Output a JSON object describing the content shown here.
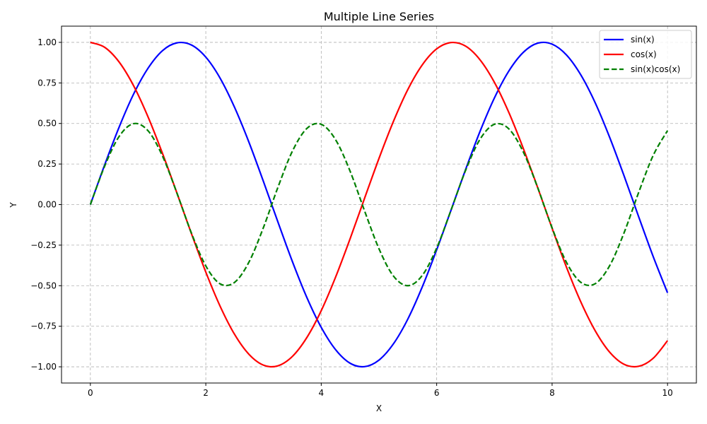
{
  "chart_data": {
    "type": "line",
    "title": "Multiple Line Series",
    "xlabel": "X",
    "ylabel": "Y",
    "xlim": [
      -0.5,
      10.5
    ],
    "ylim": [
      -1.1,
      1.1
    ],
    "x_ticks": [
      0,
      2,
      4,
      6,
      8,
      10
    ],
    "x_tick_labels": [
      "0",
      "2",
      "4",
      "6",
      "8",
      "10"
    ],
    "y_ticks": [
      -1.0,
      -0.75,
      -0.5,
      -0.25,
      0.0,
      0.25,
      0.5,
      0.75,
      1.0
    ],
    "y_tick_labels": [
      "−1.00",
      "−0.75",
      "−0.50",
      "−0.25",
      "0.00",
      "0.25",
      "0.50",
      "0.75",
      "1.00"
    ],
    "grid": true,
    "legend_position": "top-right",
    "x": [
      0,
      0.25,
      0.5,
      0.75,
      1,
      1.25,
      1.5,
      1.75,
      2,
      2.25,
      2.5,
      2.75,
      3,
      3.25,
      3.5,
      3.75,
      4,
      4.25,
      4.5,
      4.75,
      5,
      5.25,
      5.5,
      5.75,
      6,
      6.25,
      6.5,
      6.75,
      7,
      7.25,
      7.5,
      7.75,
      8,
      8.25,
      8.5,
      8.75,
      9,
      9.25,
      9.5,
      9.75,
      10
    ],
    "series": [
      {
        "name": "sin(x)",
        "color": "#0000ff",
        "dash": "solid",
        "values": [
          0,
          0.247,
          0.479,
          0.682,
          0.841,
          0.949,
          0.997,
          0.984,
          0.909,
          0.778,
          0.598,
          0.382,
          0.141,
          -0.108,
          -0.351,
          -0.572,
          -0.757,
          -0.895,
          -0.978,
          -0.999,
          -0.959,
          -0.859,
          -0.706,
          -0.508,
          -0.279,
          -0.033,
          0.215,
          0.45,
          0.657,
          0.823,
          0.938,
          0.995,
          0.989,
          0.922,
          0.798,
          0.625,
          0.412,
          0.174,
          -0.075,
          -0.319,
          -0.544
        ]
      },
      {
        "name": "cos(x)",
        "color": "#ff0000",
        "dash": "solid",
        "values": [
          1,
          0.969,
          0.878,
          0.732,
          0.54,
          0.315,
          0.071,
          -0.178,
          -0.416,
          -0.628,
          -0.801,
          -0.924,
          -0.99,
          -0.994,
          -0.936,
          -0.82,
          -0.654,
          -0.446,
          -0.211,
          0.038,
          0.284,
          0.512,
          0.709,
          0.861,
          0.96,
          0.999,
          0.977,
          0.893,
          0.754,
          0.568,
          0.347,
          0.105,
          -0.146,
          -0.387,
          -0.602,
          -0.78,
          -0.911,
          -0.985,
          -0.997,
          -0.948,
          -0.839
        ]
      },
      {
        "name": "sin(x)cos(x)",
        "color": "#008000",
        "dash": "dashed",
        "values": [
          0,
          0.239,
          0.421,
          0.499,
          0.455,
          0.299,
          0.071,
          -0.175,
          -0.378,
          -0.489,
          -0.479,
          -0.353,
          -0.14,
          0.107,
          0.329,
          0.469,
          0.495,
          0.399,
          0.206,
          -0.038,
          -0.272,
          -0.44,
          -0.5,
          -0.437,
          -0.268,
          -0.033,
          0.21,
          0.402,
          0.495,
          0.467,
          0.325,
          0.105,
          -0.144,
          -0.357,
          -0.48,
          -0.487,
          -0.375,
          -0.171,
          0.075,
          0.302,
          0.456
        ]
      }
    ]
  }
}
